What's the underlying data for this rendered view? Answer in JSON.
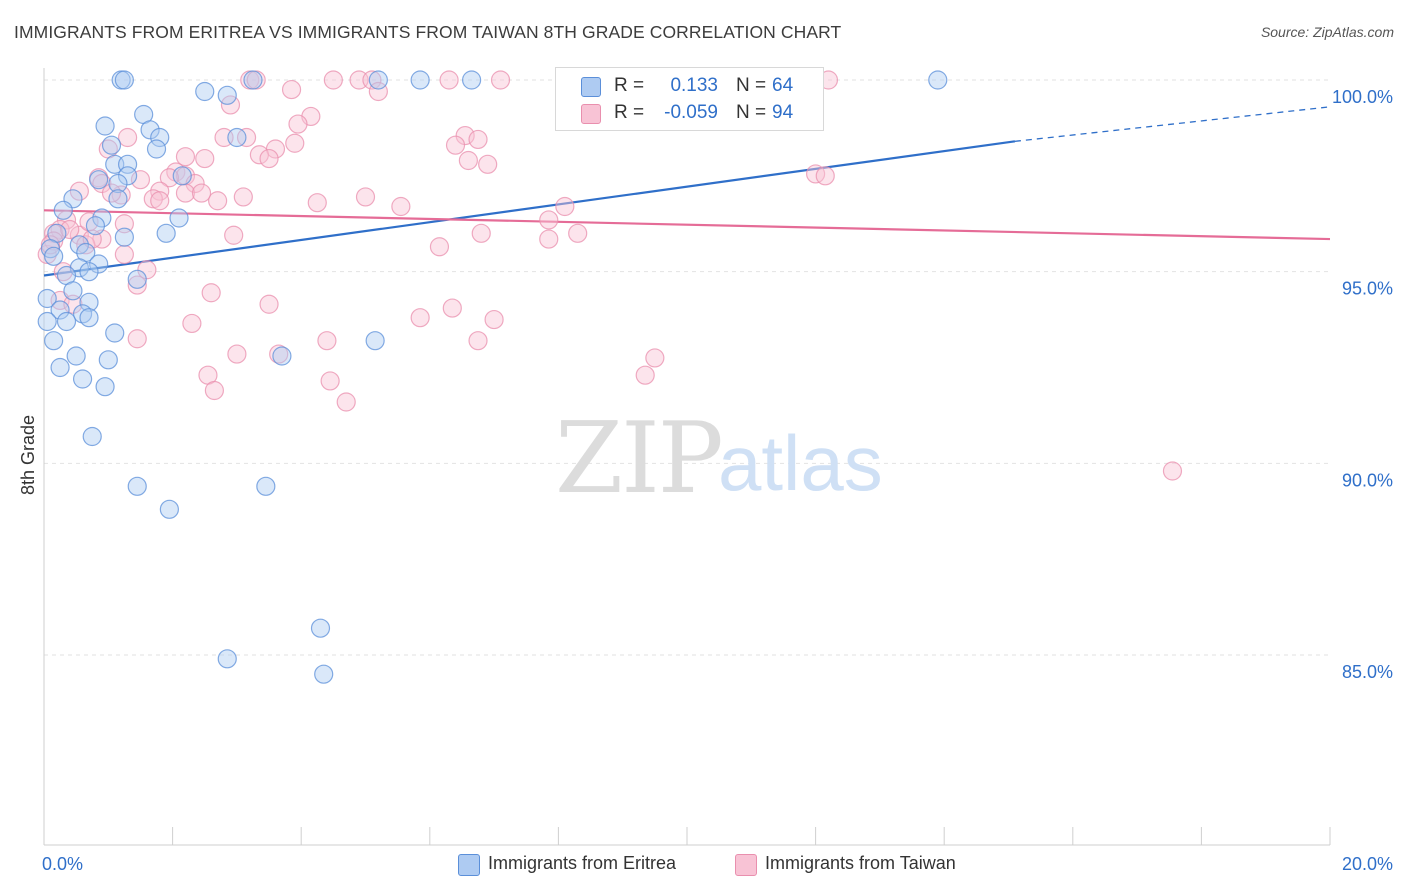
{
  "header": {
    "title": "IMMIGRANTS FROM ERITREA VS IMMIGRANTS FROM TAIWAN 8TH GRADE CORRELATION CHART",
    "source": "Source: ZipAtlas.com"
  },
  "legend": {
    "series": [
      {
        "r_label": "R =",
        "r_value": "0.133",
        "n_label": "N =",
        "n_value": "64"
      },
      {
        "r_label": "R =",
        "r_value": "-0.059",
        "n_label": "N =",
        "n_value": "94"
      }
    ]
  },
  "bottom_legend": {
    "items": [
      {
        "label": "Immigrants from Eritrea"
      },
      {
        "label": "Immigrants from Taiwan"
      }
    ]
  },
  "colors": {
    "eritrea_fill": "#aecbf2",
    "eritrea_stroke": "#5b8fd9",
    "eritrea_line": "#2f6fc9",
    "taiwan_fill": "#f8c3d5",
    "taiwan_stroke": "#e98fae",
    "taiwan_line": "#e56c97",
    "axis_label": "#2f6fc9",
    "grid": "#e2e2e2"
  },
  "chart_data": {
    "type": "scatter",
    "title": "IMMIGRANTS FROM ERITREA VS IMMIGRANTS FROM TAIWAN 8TH GRADE CORRELATION CHART",
    "watermark": "ZIPatlas",
    "xlabel": "",
    "ylabel": "8th Grade",
    "xlim": [
      0,
      20
    ],
    "ylim": [
      80,
      100.8
    ],
    "x_tick_labels": [
      "0.0%",
      "20.0%"
    ],
    "y_ticks": [
      85,
      90,
      95,
      100
    ],
    "y_tick_labels": [
      "85.0%",
      "90.0%",
      "95.0%",
      "100.0%"
    ],
    "series": [
      {
        "name": "Immigrants from Eritrea",
        "r": 0.133,
        "n": 64,
        "trend": {
          "x0": 0,
          "y0": 94.9,
          "x1": 15.1,
          "y1": 98.4,
          "dash_to_x": 20,
          "dash_to_y": 99.3
        },
        "points": [
          [
            1.2,
            100
          ],
          [
            1.25,
            100
          ],
          [
            2.5,
            99.7
          ],
          [
            2.85,
            99.6
          ],
          [
            3.25,
            100
          ],
          [
            5.2,
            100
          ],
          [
            5.85,
            100
          ],
          [
            6.65,
            100
          ],
          [
            13.9,
            100
          ],
          [
            1.55,
            99.1
          ],
          [
            0.95,
            98.8
          ],
          [
            1.65,
            98.7
          ],
          [
            1.8,
            98.5
          ],
          [
            3.0,
            98.5
          ],
          [
            1.05,
            98.3
          ],
          [
            1.75,
            98.2
          ],
          [
            1.1,
            97.8
          ],
          [
            1.3,
            97.8
          ],
          [
            1.3,
            97.5
          ],
          [
            2.15,
            97.5
          ],
          [
            0.85,
            97.4
          ],
          [
            1.15,
            97.3
          ],
          [
            0.45,
            96.9
          ],
          [
            1.15,
            96.9
          ],
          [
            0.3,
            96.6
          ],
          [
            0.9,
            96.4
          ],
          [
            2.1,
            96.4
          ],
          [
            0.8,
            96.2
          ],
          [
            0.2,
            96.0
          ],
          [
            1.9,
            96.0
          ],
          [
            1.25,
            95.9
          ],
          [
            0.55,
            95.7
          ],
          [
            0.1,
            95.6
          ],
          [
            0.65,
            95.5
          ],
          [
            0.15,
            95.4
          ],
          [
            0.85,
            95.2
          ],
          [
            0.55,
            95.1
          ],
          [
            0.7,
            95.0
          ],
          [
            0.35,
            94.9
          ],
          [
            1.45,
            94.8
          ],
          [
            0.45,
            94.5
          ],
          [
            0.05,
            94.3
          ],
          [
            0.7,
            94.2
          ],
          [
            0.25,
            94.0
          ],
          [
            0.6,
            93.9
          ],
          [
            0.7,
            93.8
          ],
          [
            0.35,
            93.7
          ],
          [
            0.05,
            93.7
          ],
          [
            1.1,
            93.4
          ],
          [
            5.15,
            93.2
          ],
          [
            0.15,
            93.2
          ],
          [
            0.5,
            92.8
          ],
          [
            1.0,
            92.7
          ],
          [
            3.7,
            92.8
          ],
          [
            0.25,
            92.5
          ],
          [
            0.6,
            92.2
          ],
          [
            0.95,
            92.0
          ],
          [
            0.75,
            90.7
          ],
          [
            1.45,
            89.4
          ],
          [
            3.45,
            89.4
          ],
          [
            1.95,
            88.8
          ],
          [
            4.3,
            85.7
          ],
          [
            2.85,
            84.9
          ],
          [
            4.35,
            84.5
          ]
        ]
      },
      {
        "name": "Immigrants from Taiwan",
        "r": -0.059,
        "n": 94,
        "trend": {
          "x0": 0,
          "y0": 96.6,
          "x1": 20,
          "y1": 95.85
        },
        "points": [
          [
            3.2,
            100
          ],
          [
            3.3,
            100
          ],
          [
            4.5,
            100
          ],
          [
            4.9,
            100
          ],
          [
            5.1,
            100
          ],
          [
            6.3,
            100
          ],
          [
            7.1,
            100
          ],
          [
            12.2,
            100
          ],
          [
            3.85,
            99.75
          ],
          [
            5.2,
            99.7
          ],
          [
            2.9,
            99.35
          ],
          [
            4.15,
            99.05
          ],
          [
            3.95,
            98.85
          ],
          [
            1.3,
            98.5
          ],
          [
            2.8,
            98.5
          ],
          [
            3.15,
            98.5
          ],
          [
            6.55,
            98.55
          ],
          [
            6.75,
            98.45
          ],
          [
            6.4,
            98.3
          ],
          [
            1.0,
            98.2
          ],
          [
            3.6,
            98.2
          ],
          [
            3.35,
            98.05
          ],
          [
            2.2,
            98.0
          ],
          [
            2.5,
            97.95
          ],
          [
            3.5,
            97.95
          ],
          [
            6.6,
            97.9
          ],
          [
            6.9,
            97.8
          ],
          [
            2.05,
            97.6
          ],
          [
            2.2,
            97.5
          ],
          [
            12.0,
            97.55
          ],
          [
            12.15,
            97.5
          ],
          [
            0.85,
            97.45
          ],
          [
            1.5,
            97.4
          ],
          [
            1.95,
            97.45
          ],
          [
            2.35,
            97.3
          ],
          [
            0.9,
            97.3
          ],
          [
            0.55,
            97.1
          ],
          [
            1.8,
            97.1
          ],
          [
            2.2,
            97.05
          ],
          [
            1.2,
            97.0
          ],
          [
            3.1,
            96.95
          ],
          [
            5.0,
            96.95
          ],
          [
            1.7,
            96.9
          ],
          [
            1.8,
            96.85
          ],
          [
            2.7,
            96.85
          ],
          [
            4.25,
            96.8
          ],
          [
            5.55,
            96.7
          ],
          [
            8.1,
            96.7
          ],
          [
            0.35,
            96.35
          ],
          [
            1.25,
            96.25
          ],
          [
            7.85,
            96.35
          ],
          [
            0.25,
            96.1
          ],
          [
            0.55,
            95.95
          ],
          [
            2.95,
            95.95
          ],
          [
            0.15,
            96.0
          ],
          [
            6.8,
            96.0
          ],
          [
            8.3,
            96.0
          ],
          [
            0.9,
            95.85
          ],
          [
            7.85,
            95.85
          ],
          [
            0.65,
            95.7
          ],
          [
            6.15,
            95.65
          ],
          [
            1.25,
            95.45
          ],
          [
            0.05,
            95.45
          ],
          [
            1.6,
            95.05
          ],
          [
            0.3,
            95.0
          ],
          [
            1.45,
            94.65
          ],
          [
            2.6,
            94.45
          ],
          [
            0.25,
            94.25
          ],
          [
            0.45,
            94.15
          ],
          [
            3.5,
            94.15
          ],
          [
            6.35,
            94.05
          ],
          [
            5.85,
            93.8
          ],
          [
            7.0,
            93.75
          ],
          [
            2.3,
            93.65
          ],
          [
            1.45,
            93.25
          ],
          [
            4.4,
            93.2
          ],
          [
            6.75,
            93.2
          ],
          [
            3.0,
            92.85
          ],
          [
            3.65,
            92.85
          ],
          [
            9.5,
            92.75
          ],
          [
            2.55,
            92.3
          ],
          [
            9.35,
            92.3
          ],
          [
            4.45,
            92.15
          ],
          [
            2.65,
            91.9
          ],
          [
            4.7,
            91.6
          ],
          [
            17.55,
            89.8
          ],
          [
            0.15,
            95.8
          ],
          [
            0.4,
            96.1
          ],
          [
            0.1,
            95.7
          ],
          [
            0.75,
            95.85
          ],
          [
            3.9,
            98.35
          ],
          [
            2.45,
            97.05
          ],
          [
            0.7,
            96.3
          ],
          [
            1.05,
            97.05
          ]
        ]
      }
    ]
  }
}
